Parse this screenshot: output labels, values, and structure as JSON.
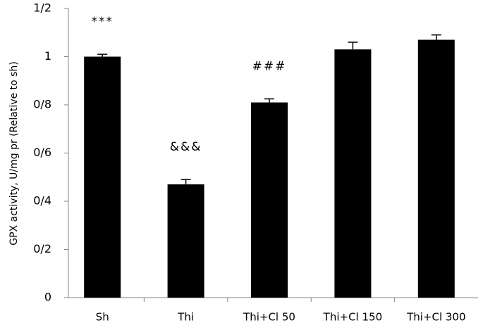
{
  "chart_data": {
    "type": "bar",
    "y_label": "GPX activity, U/mg pr (Relative to sh)",
    "categories": [
      "Sh",
      "Thi",
      "Thi+Cl 50",
      "Thi+Cl 150",
      "Thi+Cl 300"
    ],
    "values": [
      1.0,
      0.47,
      0.81,
      1.03,
      1.07
    ],
    "errors": [
      0.01,
      0.02,
      0.015,
      0.03,
      0.02
    ],
    "annotations": [
      "***",
      "&&&",
      "###",
      null,
      null
    ],
    "color": "#000000",
    "ylim": [
      0,
      1.2
    ],
    "yticks": [
      0,
      {
        "value": 0.2,
        "label": "0/2"
      },
      {
        "value": 0.4,
        "label": "0/4"
      },
      {
        "value": 0.6,
        "label": "0/6"
      },
      {
        "value": 0.8,
        "label": "0/8"
      },
      1,
      {
        "value": 1.2,
        "label": "1/2"
      }
    ],
    "grid": false
  }
}
